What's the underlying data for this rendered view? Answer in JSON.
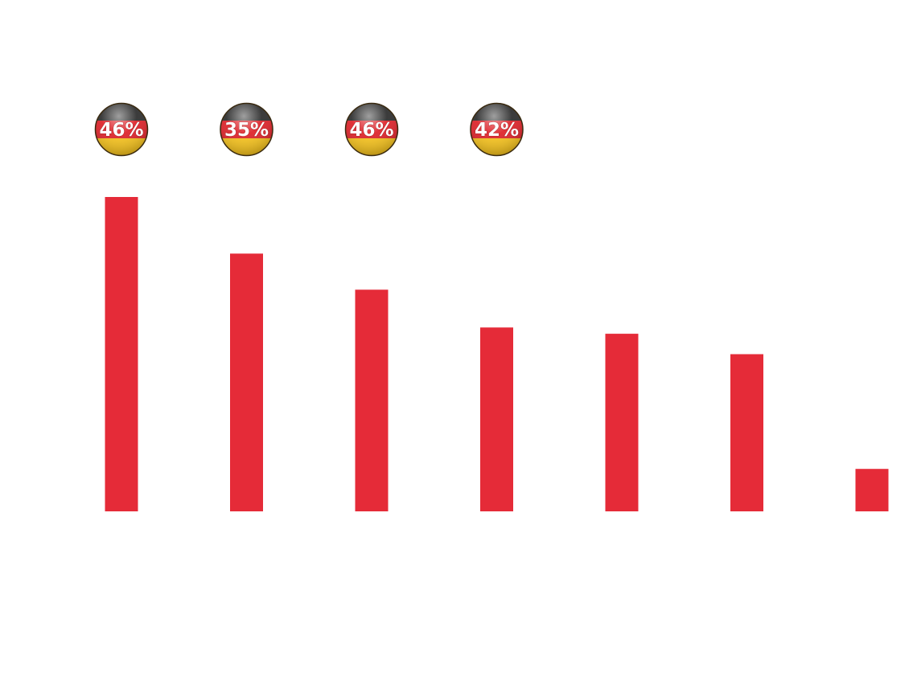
{
  "chart_data": {
    "type": "bar",
    "title": "",
    "xlabel": "",
    "ylabel": "",
    "categories": [
      "",
      "",
      "",
      "",
      "",
      "",
      ""
    ],
    "values": [
      100,
      82,
      70.5,
      58.5,
      56.5,
      50,
      13.5
    ],
    "ylim": [
      0,
      100
    ],
    "grid": false,
    "bar_color": "#e52b38",
    "badges": [
      {
        "bar_index": 0,
        "label": "46%"
      },
      {
        "bar_index": 1,
        "label": "35%"
      },
      {
        "bar_index": 2,
        "label": "46%"
      },
      {
        "bar_index": 3,
        "label": "42%"
      }
    ],
    "badge_style": "germany-flag-sphere",
    "badge_colors": {
      "top": "#2a2a2a",
      "middle": "#dd1f26",
      "bottom": "#f6c21a"
    }
  }
}
